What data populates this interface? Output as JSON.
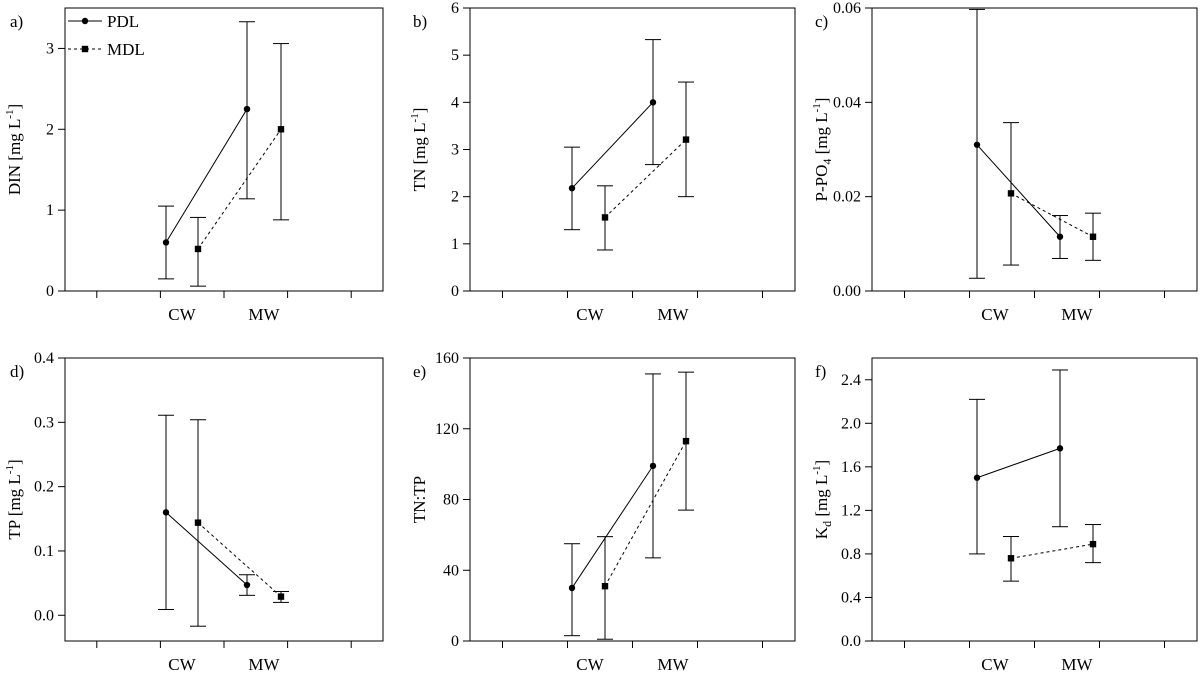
{
  "chart_data": [
    {
      "type": "line",
      "panel": "a)",
      "ylabel": "DIN [mg L⁻¹]",
      "categories": [
        "CW",
        "MW"
      ],
      "ylim": [
        0,
        3.5
      ],
      "yticks": [
        0,
        1,
        2,
        3
      ],
      "ytick_labels": [
        "0",
        "1",
        "2",
        "3"
      ],
      "legend": {
        "location": "top-left",
        "entries": [
          "PDL",
          "MDL"
        ]
      },
      "series": [
        {
          "name": "PDL",
          "marker": "circle",
          "line": "solid",
          "values": [
            0.6,
            2.25
          ],
          "err_low": [
            0.15,
            1.14
          ],
          "err_high": [
            1.05,
            3.33
          ]
        },
        {
          "name": "MDL",
          "marker": "square",
          "line": "dashed",
          "values": [
            0.52,
            2.0
          ],
          "err_low": [
            0.06,
            0.88
          ],
          "err_high": [
            0.91,
            3.06
          ]
        }
      ]
    },
    {
      "type": "line",
      "panel": "b)",
      "ylabel": "TN [mg L⁻¹]",
      "categories": [
        "CW",
        "MW"
      ],
      "ylim": [
        0,
        6
      ],
      "yticks": [
        0,
        1,
        2,
        3,
        4,
        5,
        6
      ],
      "ytick_labels": [
        "0",
        "1",
        "2",
        "3",
        "4",
        "5",
        "6"
      ],
      "series": [
        {
          "name": "PDL",
          "marker": "circle",
          "line": "solid",
          "values": [
            2.18,
            4.0
          ],
          "err_low": [
            1.3,
            2.68
          ],
          "err_high": [
            3.05,
            5.33
          ]
        },
        {
          "name": "MDL",
          "marker": "square",
          "line": "dashed",
          "values": [
            1.56,
            3.21
          ],
          "err_low": [
            0.87,
            2.0
          ],
          "err_high": [
            2.23,
            4.43
          ]
        }
      ]
    },
    {
      "type": "line",
      "panel": "c)",
      "ylabel": "P-PO₄ [mg L⁻¹]",
      "categories": [
        "CW",
        "MW"
      ],
      "ylim": [
        0,
        0.06
      ],
      "yticks": [
        0,
        0.02,
        0.04,
        0.06
      ],
      "ytick_labels": [
        "0.00",
        "0.02",
        "0.04",
        "0.06"
      ],
      "series": [
        {
          "name": "PDL",
          "marker": "circle",
          "line": "solid",
          "values": [
            0.031,
            0.0115
          ],
          "err_low": [
            0.0027,
            0.0069
          ],
          "err_high": [
            0.0597,
            0.016
          ]
        },
        {
          "name": "MDL",
          "marker": "square",
          "line": "dashed",
          "values": [
            0.0207,
            0.0115
          ],
          "err_low": [
            0.0055,
            0.0065
          ],
          "err_high": [
            0.0357,
            0.0165
          ]
        }
      ]
    },
    {
      "type": "line",
      "panel": "d)",
      "ylabel": "TP [mg L⁻¹]",
      "categories": [
        "CW",
        "MW"
      ],
      "ylim": [
        -0.04,
        0.4
      ],
      "yticks": [
        0,
        0.1,
        0.2,
        0.3,
        0.4
      ],
      "ytick_labels": [
        "0.0",
        "0.1",
        "0.2",
        "0.3",
        "0.4"
      ],
      "series": [
        {
          "name": "PDL",
          "marker": "circle",
          "line": "solid",
          "values": [
            0.16,
            0.047
          ],
          "err_low": [
            0.009,
            0.031
          ],
          "err_high": [
            0.311,
            0.063
          ]
        },
        {
          "name": "MDL",
          "marker": "square",
          "line": "dashed",
          "values": [
            0.144,
            0.029
          ],
          "err_low": [
            -0.017,
            0.02
          ],
          "err_high": [
            0.304,
            0.037
          ]
        }
      ]
    },
    {
      "type": "line",
      "panel": "e)",
      "ylabel": "TN:TP",
      "categories": [
        "CW",
        "MW"
      ],
      "ylim": [
        0,
        160
      ],
      "yticks": [
        0,
        40,
        80,
        120,
        160
      ],
      "ytick_labels": [
        "0",
        "40",
        "80",
        "120",
        "160"
      ],
      "series": [
        {
          "name": "PDL",
          "marker": "circle",
          "line": "solid",
          "values": [
            30,
            99
          ],
          "err_low": [
            3,
            47
          ],
          "err_high": [
            55,
            151
          ]
        },
        {
          "name": "MDL",
          "marker": "square",
          "line": "dashed",
          "values": [
            31,
            113
          ],
          "err_low": [
            1,
            74
          ],
          "err_high": [
            59,
            152
          ]
        }
      ]
    },
    {
      "type": "line",
      "panel": "f)",
      "ylabel": "K_d [mg L⁻¹]",
      "categories": [
        "CW",
        "MW"
      ],
      "ylim": [
        0,
        2.6
      ],
      "yticks": [
        0,
        0.4,
        0.8,
        1.2,
        1.6,
        2.0,
        2.4
      ],
      "ytick_labels": [
        "0.0",
        "0.4",
        "0.8",
        "1.2",
        "1.6",
        "2.0",
        "2.4"
      ],
      "series": [
        {
          "name": "PDL",
          "marker": "circle",
          "line": "solid",
          "values": [
            1.5,
            1.77
          ],
          "err_low": [
            0.8,
            1.05
          ],
          "err_high": [
            2.22,
            2.49
          ]
        },
        {
          "name": "MDL",
          "marker": "square",
          "line": "dashed",
          "values": [
            0.76,
            0.89
          ],
          "err_low": [
            0.55,
            0.72
          ],
          "err_high": [
            0.96,
            1.07
          ]
        }
      ]
    }
  ]
}
